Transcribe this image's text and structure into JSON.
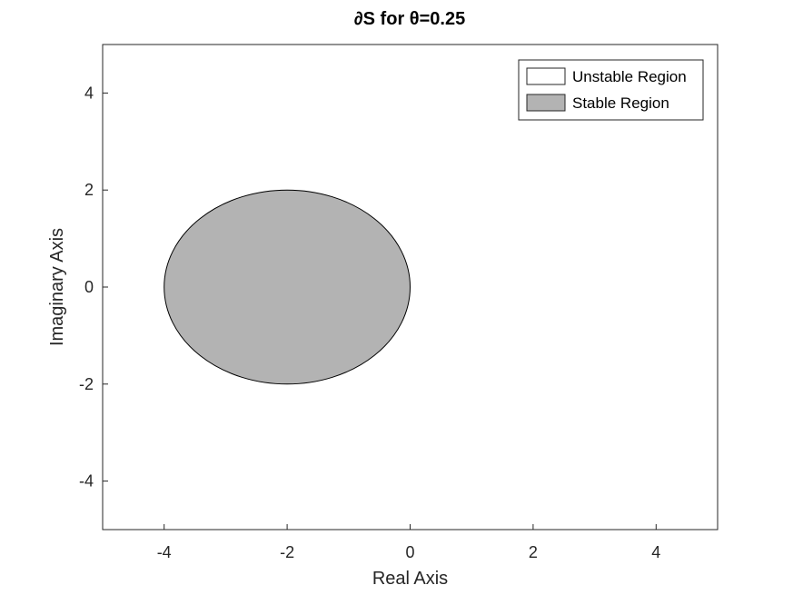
{
  "chart_data": {
    "type": "area",
    "title": "∂S  for θ=0.25",
    "xlabel": "Real Axis",
    "ylabel": "Imaginary Axis",
    "xlim": [
      -5,
      5
    ],
    "ylim": [
      -5,
      5
    ],
    "x_ticks": [
      -4,
      -2,
      0,
      2,
      4
    ],
    "y_ticks": [
      4,
      2,
      0,
      -2,
      -4
    ],
    "grid": false,
    "legend_position": "top-right",
    "regions": [
      {
        "name": "Unstable Region",
        "color": "#ffffff",
        "shape": "exterior of circle"
      },
      {
        "name": "Stable Region",
        "color": "#b3b3b3",
        "shape": "disk",
        "center": [
          -2,
          0
        ],
        "radius": 2
      }
    ]
  },
  "legend": {
    "unstable_label": "Unstable Region",
    "stable_label": "Stable Region"
  }
}
